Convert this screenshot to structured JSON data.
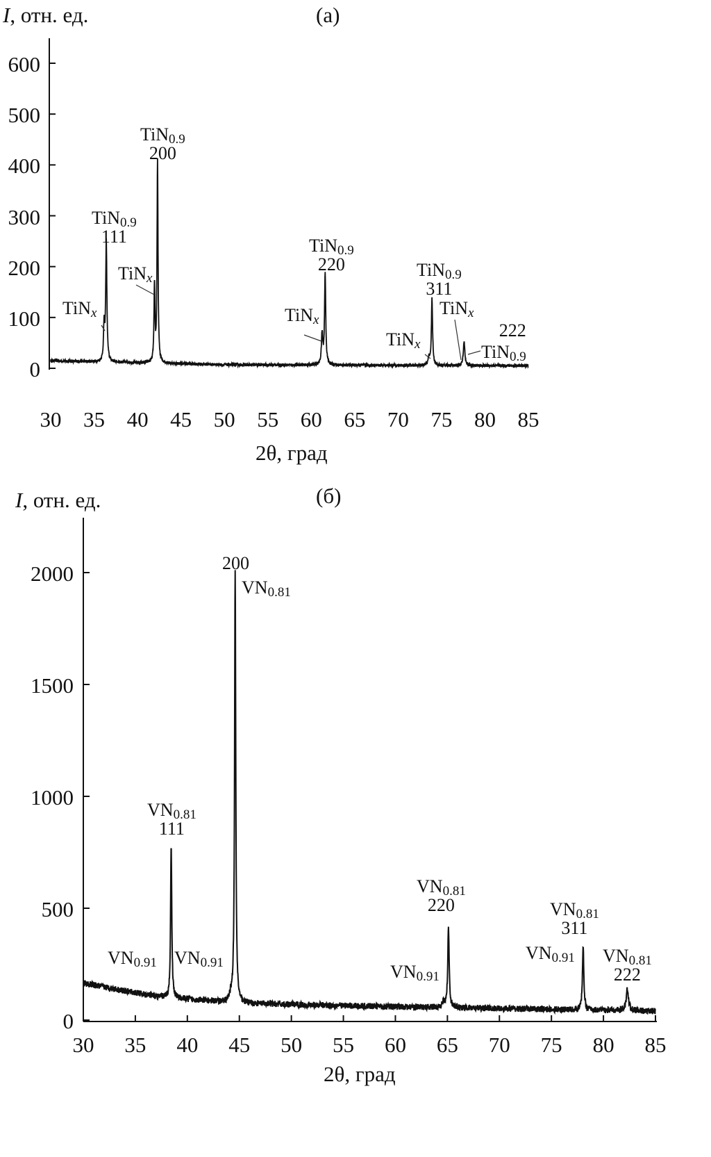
{
  "chart_data": [
    {
      "type": "line",
      "panel": "(a)",
      "ylabel_italic": "I",
      "ylabel": ", отн. ед.",
      "xlabel": "2θ, град",
      "xlim": [
        30,
        85
      ],
      "ylim": [
        0,
        600
      ],
      "xticks": [
        30,
        35,
        40,
        45,
        50,
        55,
        60,
        65,
        70,
        75,
        80,
        85
      ],
      "yticks": [
        0,
        100,
        200,
        300,
        400,
        500,
        600
      ],
      "baseline": {
        "x": [
          30,
          50,
          85
        ],
        "y": [
          15,
          7,
          5
        ]
      },
      "noise": 3,
      "peaks": [
        {
          "x": 36.4,
          "y": 235,
          "w": 0.12
        },
        {
          "x": 36.15,
          "y": 70,
          "w": 0.12
        },
        {
          "x": 42.3,
          "y": 395,
          "w": 0.1
        },
        {
          "x": 41.95,
          "y": 150,
          "w": 0.1
        },
        {
          "x": 61.6,
          "y": 180,
          "w": 0.12
        },
        {
          "x": 61.25,
          "y": 60,
          "w": 0.14
        },
        {
          "x": 73.9,
          "y": 130,
          "w": 0.12
        },
        {
          "x": 73.55,
          "y": 15,
          "w": 0.15
        },
        {
          "x": 77.6,
          "y": 48,
          "w": 0.15
        }
      ],
      "annotations": [
        {
          "formula": "TiN",
          "sub": "0.9",
          "hkl": "200"
        },
        {
          "formula": "TiN",
          "sub": "0.9",
          "hkl": "111"
        },
        {
          "formula": "TiN",
          "sub": "x",
          "hkl": ""
        },
        {
          "formula": "TiN",
          "sub": "x",
          "hkl": ""
        },
        {
          "formula": "TiN",
          "sub": "0.9",
          "hkl": "220"
        },
        {
          "formula": "TiN",
          "sub": "x",
          "hkl": ""
        },
        {
          "formula": "TiN",
          "sub": "0.9",
          "hkl": "311"
        },
        {
          "formula": "TiN",
          "sub": "x",
          "hkl": ""
        },
        {
          "formula": "TiN",
          "sub": "x",
          "hkl": ""
        },
        {
          "formula": "TiN",
          "sub": "0.9",
          "hkl": "222"
        }
      ]
    },
    {
      "type": "line",
      "panel": "(б)",
      "ylabel_italic": "I",
      "ylabel": ", отн. ед.",
      "xlabel": "2θ, град",
      "xlim": [
        30,
        85
      ],
      "ylim": [
        0,
        2200
      ],
      "xticks": [
        30,
        35,
        40,
        45,
        50,
        55,
        60,
        65,
        70,
        75,
        80,
        85
      ],
      "yticks": [
        0,
        500,
        1000,
        1500,
        2000
      ],
      "baseline": {
        "x": [
          30,
          37,
          45,
          60,
          85
        ],
        "y": [
          165,
          105,
          75,
          60,
          40
        ]
      },
      "noise": 14,
      "peaks": [
        {
          "x": 38.45,
          "y": 690,
          "w": 0.1
        },
        {
          "x": 44.6,
          "y": 1930,
          "w": 0.1
        },
        {
          "x": 44.2,
          "y": 30,
          "w": 0.2
        },
        {
          "x": 65.1,
          "y": 360,
          "w": 0.12
        },
        {
          "x": 64.6,
          "y": 20,
          "w": 0.25
        },
        {
          "x": 78.05,
          "y": 280,
          "w": 0.12
        },
        {
          "x": 82.3,
          "y": 95,
          "w": 0.2
        }
      ],
      "annotations": [
        {
          "formula": "",
          "sub": "",
          "hkl": "200"
        },
        {
          "formula": "VN",
          "sub": "0.81",
          "hkl": ""
        },
        {
          "formula": "VN",
          "sub": "0.81",
          "hkl": "111"
        },
        {
          "formula": "VN",
          "sub": "0.91",
          "hkl": ""
        },
        {
          "formula": "VN",
          "sub": "0.91",
          "hkl": ""
        },
        {
          "formula": "VN",
          "sub": "0.81",
          "hkl": "220"
        },
        {
          "formula": "VN",
          "sub": "0.91",
          "hkl": ""
        },
        {
          "formula": "VN",
          "sub": "0.81",
          "hkl": "311"
        },
        {
          "formula": "VN",
          "sub": "0.91",
          "hkl": ""
        },
        {
          "formula": "VN",
          "sub": "0.81",
          "hkl": "222"
        }
      ]
    }
  ]
}
